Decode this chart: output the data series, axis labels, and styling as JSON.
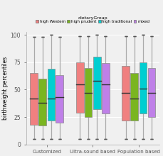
{
  "groups": [
    "Customized",
    "Ultra-sound based",
    "Population based"
  ],
  "categories": [
    "high Western",
    "high prudent",
    "high traditional",
    "mixed"
  ],
  "colors": [
    "#F08080",
    "#7AB520",
    "#00CED1",
    "#BF80E8"
  ],
  "background_color": "#f0f0f0",
  "ylabel": "birthweight percentiles",
  "legend_title": "dietaryGroup",
  "ylim": [
    0,
    103
  ],
  "yticks": [
    0,
    25,
    50,
    75,
    100
  ],
  "boxes": {
    "Customized": {
      "high Western": {
        "min": 5,
        "q1": 18,
        "median": 42,
        "q3": 65,
        "max": 98
      },
      "high prudent": {
        "min": 5,
        "q1": 17,
        "median": 38,
        "q3": 60,
        "max": 98
      },
      "high traditional": {
        "min": 5,
        "q1": 22,
        "median": 42,
        "q3": 69,
        "max": 100
      },
      "mixed": {
        "min": 5,
        "q1": 20,
        "median": 43,
        "q3": 63,
        "max": 98
      }
    },
    "Ultra-sound based": {
      "high Western": {
        "min": 5,
        "q1": 29,
        "median": 55,
        "q3": 75,
        "max": 99
      },
      "high prudent": {
        "min": 5,
        "q1": 25,
        "median": 47,
        "q3": 70,
        "max": 99
      },
      "high traditional": {
        "min": 5,
        "q1": 32,
        "median": 58,
        "q3": 80,
        "max": 100
      },
      "mixed": {
        "min": 5,
        "q1": 28,
        "median": 55,
        "q3": 74,
        "max": 99
      }
    },
    "Population based": {
      "high Western": {
        "min": 5,
        "q1": 22,
        "median": 47,
        "q3": 72,
        "max": 99
      },
      "high prudent": {
        "min": 5,
        "q1": 22,
        "median": 42,
        "q3": 65,
        "max": 99
      },
      "high traditional": {
        "min": 5,
        "q1": 28,
        "median": 51,
        "q3": 75,
        "max": 100
      },
      "mixed": {
        "min": 5,
        "q1": 25,
        "median": 47,
        "q3": 70,
        "max": 99
      }
    }
  }
}
